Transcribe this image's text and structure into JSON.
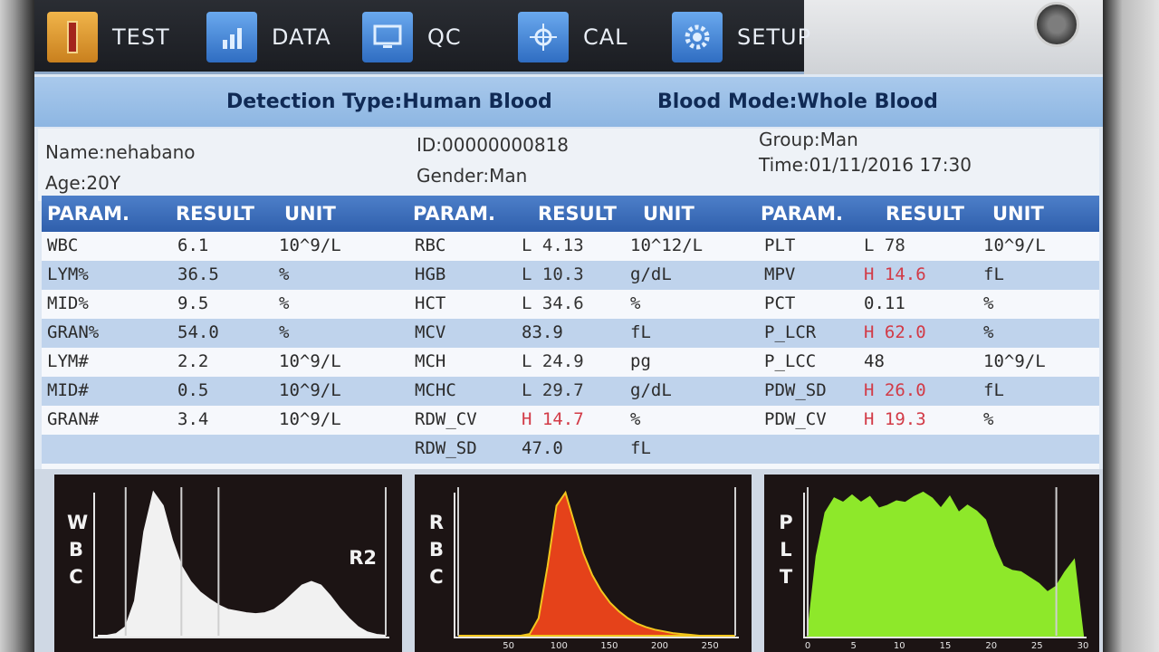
{
  "toolbar": {
    "items": [
      {
        "label": "TEST",
        "icon": "test-tube-icon"
      },
      {
        "label": "DATA",
        "icon": "bar-chart-icon"
      },
      {
        "label": "QC",
        "icon": "monitor-icon"
      },
      {
        "label": "CAL",
        "icon": "crosshair-icon"
      },
      {
        "label": "SETUP",
        "icon": "gear-icon"
      }
    ]
  },
  "banner": {
    "detection_type": "Detection Type:Human Blood",
    "blood_mode": "Blood Mode:Whole Blood"
  },
  "patient": {
    "name": "Name:nehabano",
    "age": "Age:20Y",
    "id": "ID:00000000818",
    "gender": "Gender:Man",
    "group": "Group:Man",
    "time": "Time:01/11/2016 17:30"
  },
  "headers": {
    "param": "PARAM.",
    "result": "RESULT",
    "unit": "UNIT"
  },
  "columns": [
    [
      {
        "param": "WBC",
        "result": "6.1",
        "unit": "10^9/L",
        "flag": ""
      },
      {
        "param": "LYM%",
        "result": "36.5",
        "unit": "%",
        "flag": ""
      },
      {
        "param": "MID%",
        "result": "9.5",
        "unit": "%",
        "flag": ""
      },
      {
        "param": "GRAN%",
        "result": "54.0",
        "unit": "%",
        "flag": ""
      },
      {
        "param": "LYM#",
        "result": "2.2",
        "unit": "10^9/L",
        "flag": ""
      },
      {
        "param": "MID#",
        "result": "0.5",
        "unit": "10^9/L",
        "flag": ""
      },
      {
        "param": "GRAN#",
        "result": "3.4",
        "unit": "10^9/L",
        "flag": ""
      }
    ],
    [
      {
        "param": "RBC",
        "result": "L 4.13",
        "unit": "10^12/L",
        "flag": "low"
      },
      {
        "param": "HGB",
        "result": "L 10.3",
        "unit": "g/dL",
        "flag": "low"
      },
      {
        "param": "HCT",
        "result": "L 34.6",
        "unit": "%",
        "flag": "low"
      },
      {
        "param": "MCV",
        "result": "83.9",
        "unit": "fL",
        "flag": ""
      },
      {
        "param": "MCH",
        "result": "L 24.9",
        "unit": "pg",
        "flag": "low"
      },
      {
        "param": "MCHC",
        "result": "L 29.7",
        "unit": "g/dL",
        "flag": "low"
      },
      {
        "param": "RDW_CV",
        "result": "H 14.7",
        "unit": "%",
        "flag": "high"
      },
      {
        "param": "RDW_SD",
        "result": "47.0",
        "unit": "fL",
        "flag": ""
      }
    ],
    [
      {
        "param": "PLT",
        "result": "L 78",
        "unit": "10^9/L",
        "flag": "low"
      },
      {
        "param": "MPV",
        "result": "H 14.6",
        "unit": "fL",
        "flag": "high"
      },
      {
        "param": "PCT",
        "result": "0.11",
        "unit": "%",
        "flag": ""
      },
      {
        "param": "P_LCR",
        "result": "H 62.0",
        "unit": "%",
        "flag": "high"
      },
      {
        "param": "P_LCC",
        "result": "48",
        "unit": "10^9/L",
        "flag": ""
      },
      {
        "param": "PDW_SD",
        "result": "H 26.0",
        "unit": "fL",
        "flag": "high"
      },
      {
        "param": "PDW_CV",
        "result": "H 19.3",
        "unit": "%",
        "flag": "high"
      }
    ]
  ],
  "histograms": [
    {
      "name": "WBC",
      "label": [
        "W",
        "B",
        "C"
      ],
      "marker": "R2",
      "color": "#f1f1f1",
      "values": [
        0,
        0,
        2,
        10,
        40,
        120,
        165,
        150,
        110,
        80,
        62,
        50,
        42,
        35,
        30,
        28,
        26,
        25,
        26,
        30,
        38,
        48,
        58,
        62,
        58,
        46,
        32,
        20,
        10,
        4,
        1,
        0
      ]
    },
    {
      "name": "RBC",
      "label": [
        "R",
        "B",
        "C"
      ],
      "marker": "",
      "color": "#e5421a",
      "x_ticks": [
        "50",
        "100",
        "150",
        "200",
        "250"
      ],
      "values": [
        0,
        0,
        0,
        0,
        0,
        0,
        0,
        0,
        2,
        20,
        80,
        150,
        165,
        130,
        95,
        70,
        52,
        38,
        28,
        20,
        14,
        10,
        7,
        5,
        3,
        2,
        1,
        0,
        0,
        0,
        0,
        0
      ]
    },
    {
      "name": "PLT",
      "label": [
        "P",
        "L",
        "T"
      ],
      "marker": "",
      "color": "#8ee82a",
      "x_ticks": [
        "0",
        "5",
        "10",
        "15",
        "20",
        "25",
        "30"
      ],
      "values": [
        0,
        55,
        85,
        95,
        92,
        97,
        92,
        96,
        88,
        90,
        93,
        92,
        96,
        99,
        95,
        88,
        96,
        85,
        90,
        86,
        80,
        62,
        48,
        45,
        44,
        40,
        36,
        30,
        34,
        44,
        52,
        0
      ]
    }
  ]
}
